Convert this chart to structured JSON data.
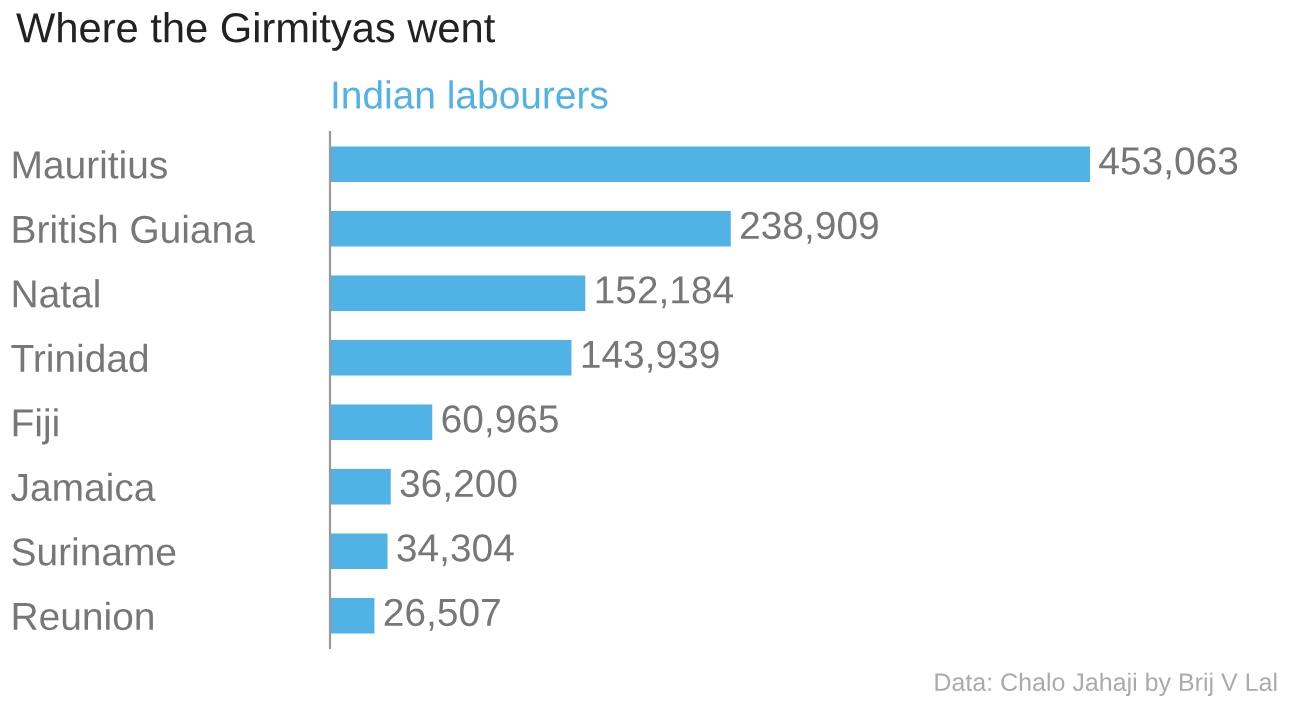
{
  "chart_data": {
    "type": "bar",
    "orientation": "horizontal",
    "title": "Where the Girmityas went",
    "categories": [
      "Mauritius",
      "British Guiana",
      "Natal",
      "Trinidad",
      "Fiji",
      "Jamaica",
      "Suriname",
      "Reunion"
    ],
    "series": [
      {
        "name": "Indian labourers",
        "color": "#51b2e5",
        "values": [
          453063,
          238909,
          152184,
          143939,
          60965,
          36200,
          34304,
          26507
        ],
        "value_labels": [
          "453,063",
          "238,909",
          "152,184",
          "143,939",
          "60,965",
          "36,200",
          "34,304",
          "26,507"
        ]
      }
    ],
    "tick_labels": "y",
    "legend": "top left",
    "annotations": [
      "Data: Chalo Jahaji by Brij V Lal"
    ]
  }
}
